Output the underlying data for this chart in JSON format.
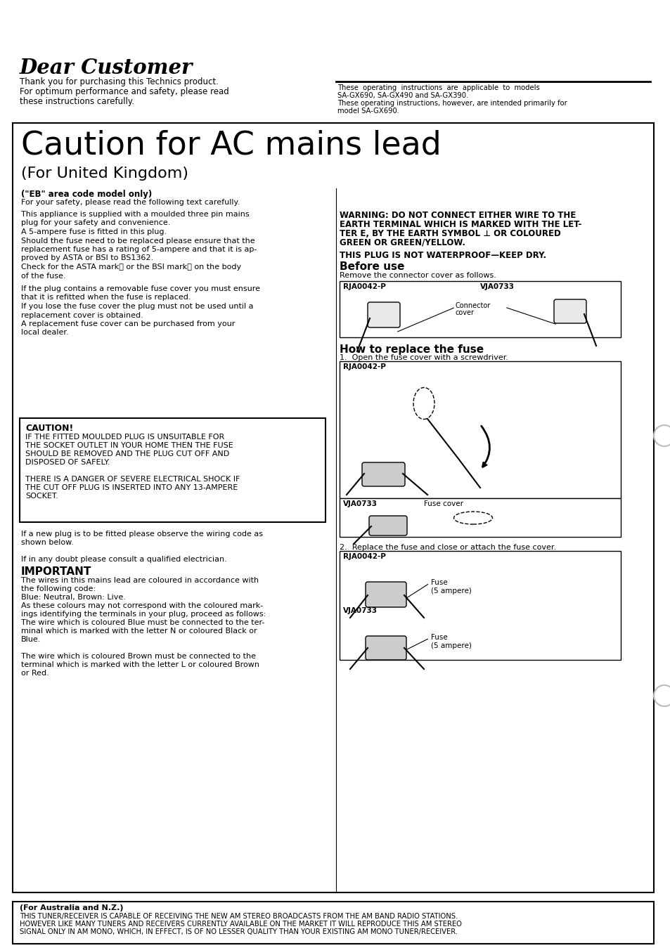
{
  "bg_color": "#ffffff",
  "dear_customer_title": "Dear Customer",
  "dear_customer_body1": "Thank you for purchasing this Technics product.",
  "dear_customer_body2": "For optimum performance and safety, please read",
  "dear_customer_body3": "these instructions carefully.",
  "right_hdr1": "These  operating  instructions  are  applicable  to  models",
  "right_hdr2": "SA-GX690, SA-GX490 and SA-GX390.",
  "right_hdr3": "These operating instructions, however, are intended primarily for",
  "right_hdr4": "model SA-GX690.",
  "caution_main_title": "Caution for AC mains lead",
  "caution_subtitle": "(For United Kingdom)",
  "eb_code": "(\"EB\" area code model only)",
  "eb_safety": "For your safety, please read the following text carefully.",
  "eb_p1": "This appliance is supplied with a moulded three pin mains",
  "eb_p2": "plug for your safety and convenience.",
  "eb_p3": "A 5-ampere fuse is fitted in this plug.",
  "eb_p4": "Should the fuse need to be replaced please ensure that the",
  "eb_p5": "replacement fuse has a rating of 5-ampere and that it is ap-",
  "eb_p6": "proved by ASTA or BSI to BS1362.",
  "eb_p7": "Check for the ASTA markⒶ or the BSI markⒽ on the body",
  "eb_p8": "of the fuse.",
  "eb_p9": "If the plug contains a removable fuse cover you must ensure",
  "eb_p10": "that it is refitted when the fuse is replaced.",
  "eb_p11": "If you lose the fuse cover the plug must not be used until a",
  "eb_p12": "replacement cover is obtained.",
  "eb_p13": "A replacement fuse cover can be purchased from your",
  "eb_p14": "local dealer.",
  "warning_title": "WARNING: DO NOT CONNECT EITHER WIRE TO THE",
  "warning_l2": "EARTH TERMINAL WHICH IS MARKED WITH THE LET-",
  "warning_l3": "TER E, BY THE EARTH SYMBOL ⊥ OR COLOURED",
  "warning_l4": "GREEN OR GREEN/YELLOW.",
  "waterproof": "THIS PLUG IS NOT WATERPROOF—KEEP DRY.",
  "before_use_title": "Before use",
  "before_use_body": "Remove the connector cover as follows.",
  "rja1": "RJA0042-P",
  "vja1": "VJA0733",
  "connector_cover": "Connector",
  "connector_cover2": "cover",
  "how_to_title": "How to replace the fuse",
  "how_step1": "1.  Open the fuse cover with a screwdriver.",
  "rja2": "RJA0042-P",
  "vja2": "VJA0733",
  "fuse_cover_lbl": "Fuse cover",
  "how_step2": "2.  Replace the fuse and close or attach the fuse cover.",
  "rja3": "RJA0042-P",
  "vja3": "VJA0733",
  "fuse_lbl1": "Fuse",
  "fuse_lbl1b": "(5 ampere)",
  "fuse_lbl2": "Fuse",
  "fuse_lbl2b": "(5 ampere)",
  "caution_title": "CAUTION!",
  "caution_l1": "IF THE FITTED MOULDED PLUG IS UNSUITABLE FOR",
  "caution_l2": "THE SOCKET OUTLET IN YOUR HOME THEN THE FUSE",
  "caution_l3": "SHOULD BE REMOVED AND THE PLUG CUT OFF AND",
  "caution_l4": "DISPOSED OF SAFELY.",
  "caution_l5": "THERE IS A DANGER OF SEVERE ELECTRICAL SHOCK IF",
  "caution_l6": "THE CUT OFF PLUG IS INSERTED INTO ANY 13-AMPERE",
  "caution_l7": "SOCKET.",
  "wiring_l1": "If a new plug is to be fitted please observe the wiring code as",
  "wiring_l2": "shown below.",
  "wiring_l3": "If in any doubt please consult a qualified electrician.",
  "important_title": "IMPORTANT",
  "imp_l1": "The wires in this mains lead are coloured in accordance with",
  "imp_l2": "the following code:",
  "imp_l3": "Blue: Neutral, Brown: Live.",
  "imp_l4": "As these colours may not correspond with the coloured mark-",
  "imp_l5": "ings identifying the terminals in your plug, proceed as follows:",
  "imp_l6": "The wire which is coloured Blue must be connected to the ter-",
  "imp_l7": "minal which is marked with the letter N or coloured Black or",
  "imp_l8": "Blue.",
  "imp_l9": "The wire which is coloured Brown must be connected to the",
  "imp_l10": "terminal which is marked with the letter L or coloured Brown",
  "imp_l11": "or Red.",
  "aus_header": "(For Australia and N.Z.)",
  "aus_l1": "THIS TUNER/RECEIVER IS CAPABLE OF RECEIVING THE NEW AM STEREO BROADCASTS FROM THE AM BAND RADIO STATIONS.",
  "aus_l2": "HOWEVER LIKE MANY TUNERS AND RECEIVERS CURRENTLY AVAILABLE ON THE MARKET IT WILL REPRODUCE THIS AM STEREO",
  "aus_l3": "SIGNAL ONLY IN AM MONO, WHICH, IN EFFECT, IS OF NO LESSER QUALITY THAN YOUR EXISTING AM MONO TUNER/RECEIVER."
}
